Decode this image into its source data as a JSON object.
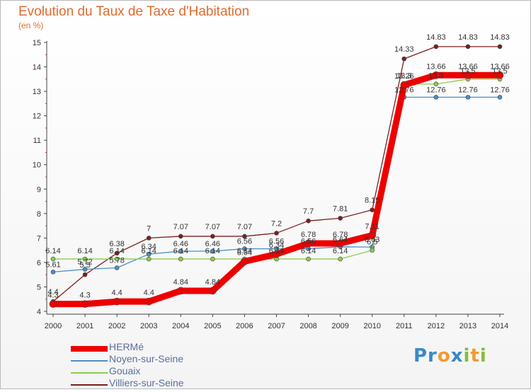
{
  "chart_data": {
    "type": "line",
    "title": "Evolution du Taux de Taxe d'Habitation",
    "subtitle": "(en %)",
    "x": [
      "2000",
      "2001",
      "2002",
      "2003",
      "2004",
      "2005",
      "2006",
      "2007",
      "2008",
      "2009",
      "2010",
      "2011",
      "2012",
      "2013",
      "2014"
    ],
    "ylim": [
      4,
      15
    ],
    "yticks": [
      4,
      5,
      6,
      7,
      8,
      9,
      10,
      11,
      12,
      13,
      14,
      15
    ],
    "grid": false,
    "legend_position": "bottom-left",
    "series": [
      {
        "name": "HERMé",
        "color": "#ee0000",
        "values": [
          4.3,
          4.3,
          4.4,
          4.4,
          4.84,
          4.84,
          6.04,
          6.34,
          6.78,
          6.78,
          7.11,
          13.26,
          13.66,
          13.66,
          13.66
        ],
        "labels": [
          "4.3",
          "4.3",
          "4.4",
          "4.4",
          "4.84",
          "4.84",
          "6.04",
          "6.34",
          "6.78",
          "6.78",
          "7.11",
          "13.26",
          "13.66",
          "13.66",
          "13.66"
        ]
      },
      {
        "name": "Noyen-sur-Seine",
        "color": "#4a8fc7",
        "values": [
          5.61,
          5.72,
          5.78,
          6.34,
          6.46,
          6.46,
          6.56,
          6.56,
          6.56,
          6.64,
          6.63,
          12.76,
          12.76,
          12.76,
          12.76
        ],
        "labels": [
          "5.61",
          "5.72",
          "5.78",
          "6.34",
          "6.46",
          "6.46",
          "6.56",
          "6.56",
          "6.56",
          "6.64",
          "6.63",
          "12.76",
          "12.76",
          "12.76",
          "12.76"
        ]
      },
      {
        "name": "Gouaix",
        "color": "#86d04a",
        "values": [
          6.14,
          6.14,
          6.14,
          6.14,
          6.14,
          6.14,
          6.14,
          6.14,
          6.14,
          6.14,
          6.5,
          13.3,
          13.3,
          13.5,
          13.5
        ],
        "labels": [
          "6.14",
          "6.14",
          "6.14",
          "6.14",
          "6.14",
          "6.14",
          "6.14",
          "6.14",
          "6.14",
          "6.14",
          "6.5",
          "13.3",
          "13.3",
          "13.5",
          "13.5"
        ]
      },
      {
        "name": "Villiers-sur-Seine",
        "color": "#7b1f1f",
        "values": [
          4.4,
          5.5,
          6.38,
          7,
          7.07,
          7.07,
          7.07,
          7.2,
          7.7,
          7.81,
          8.15,
          14.33,
          14.83,
          14.83,
          14.83
        ],
        "labels": [
          "4.4",
          "5.5",
          "6.38",
          "7",
          "7.07",
          "7.07",
          "7.07",
          "7.2",
          "7.7",
          "7.81",
          "8.15",
          "14.33",
          "14.83",
          "14.83",
          "14.83"
        ]
      }
    ]
  },
  "logo_text": "Proxiti"
}
